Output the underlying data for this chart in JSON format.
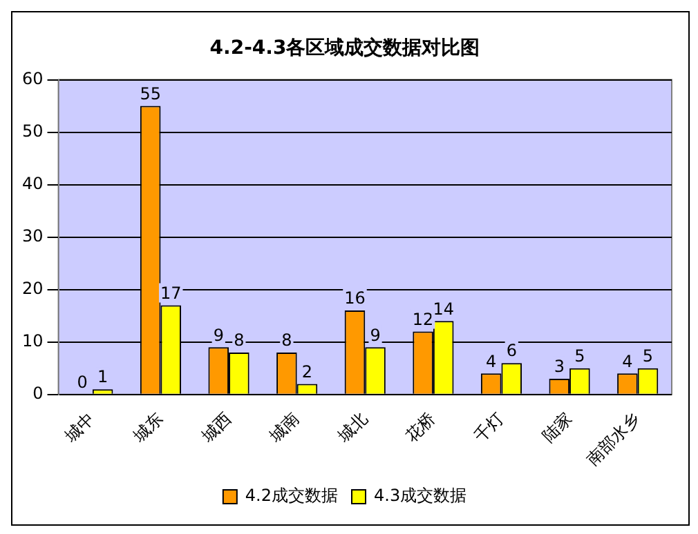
{
  "chart_data": {
    "type": "bar",
    "title": "4.2-4.3各区域成交数据对比图",
    "categories": [
      "城中",
      "城东",
      "城西",
      "城南",
      "城北",
      "花桥",
      "千灯",
      "陆家",
      "南部水乡"
    ],
    "series": [
      {
        "name": "4.2成交数据",
        "color": "#ff9900",
        "values": [
          0,
          55,
          9,
          8,
          16,
          12,
          4,
          3,
          4
        ]
      },
      {
        "name": "4.3成交数据",
        "color": "#ffff00",
        "values": [
          1,
          17,
          8,
          2,
          9,
          14,
          6,
          5,
          5
        ]
      }
    ],
    "ylim": [
      0,
      60
    ],
    "yticks": [
      0,
      10,
      20,
      30,
      40,
      50,
      60
    ],
    "grid": "y",
    "legend": "bottom",
    "data_labels": true
  }
}
